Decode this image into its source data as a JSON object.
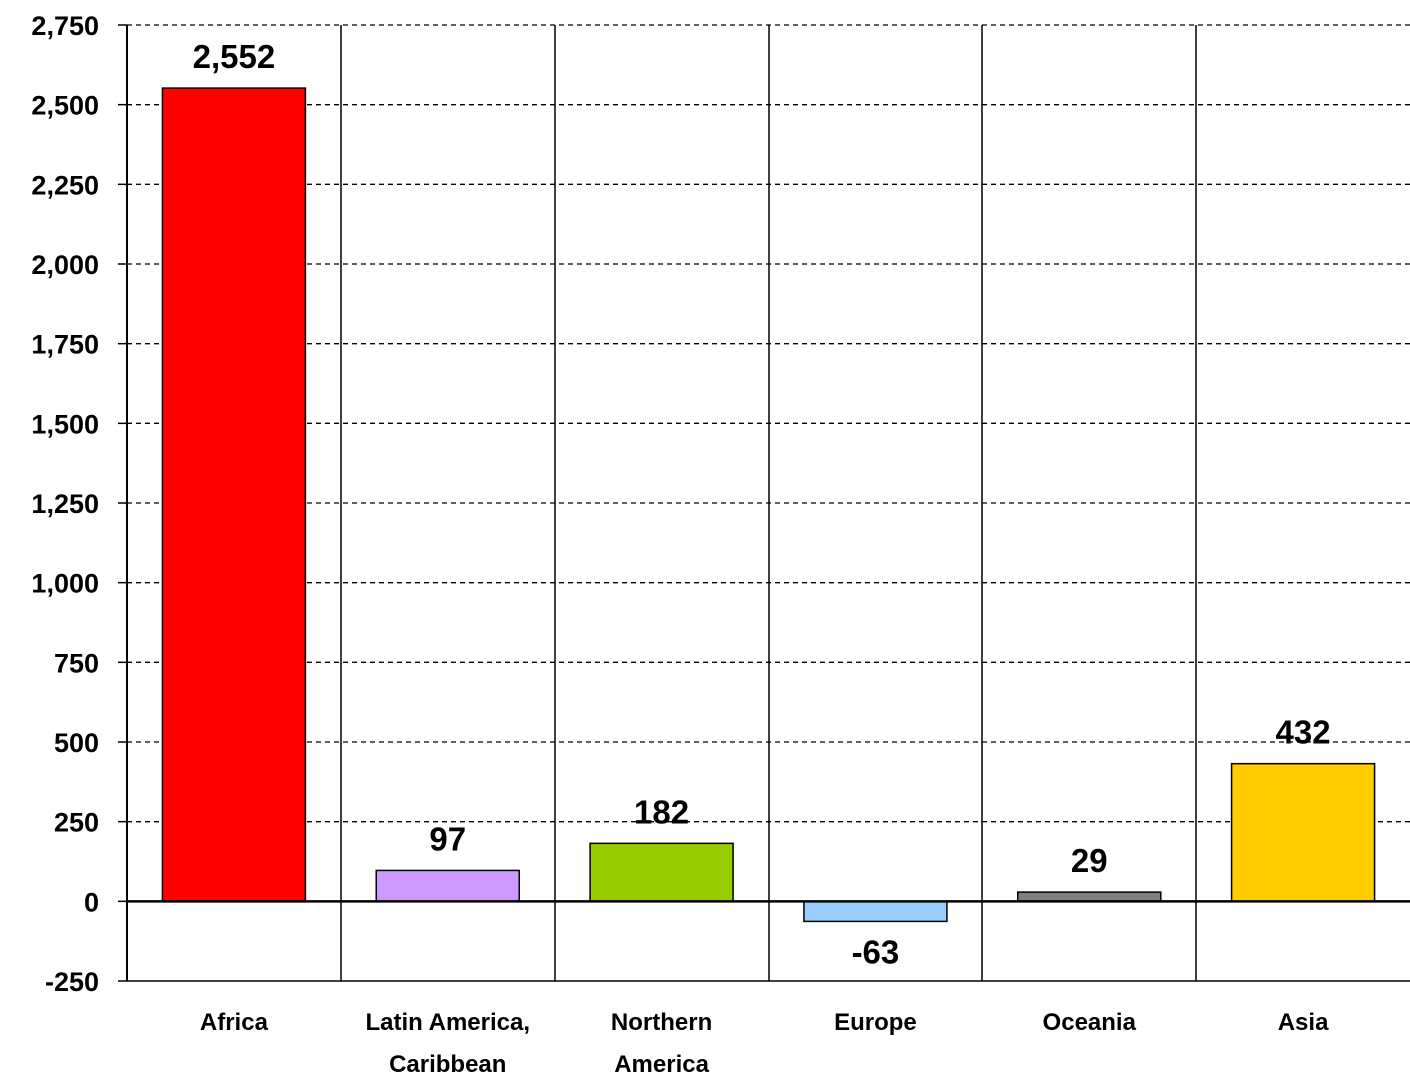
{
  "chart_data": {
    "type": "bar",
    "title": "",
    "xlabel": "",
    "ylabel": "",
    "categories": [
      [
        "Africa"
      ],
      [
        "Latin America,",
        "Caribbean"
      ],
      [
        "Northern",
        "America"
      ],
      [
        "Europe"
      ],
      [
        "Oceania"
      ],
      [
        "Asia"
      ]
    ],
    "values": [
      2552,
      97,
      182,
      -63,
      29,
      432
    ],
    "value_labels": [
      "2,552",
      "97",
      "182",
      "-63",
      "29",
      "432"
    ],
    "colors": [
      "#ff0000",
      "#cc99ff",
      "#99cc00",
      "#99ccff",
      "#808080",
      "#ffcc00"
    ],
    "ylim": [
      -250,
      2750
    ],
    "yticks": [
      -250,
      0,
      250,
      500,
      750,
      1000,
      1250,
      1500,
      1750,
      2000,
      2250,
      2500,
      2750
    ],
    "ytick_labels": [
      "-250",
      "0",
      "250",
      "500",
      "750",
      "1,000",
      "1,250",
      "1,500",
      "1,750",
      "2,000",
      "2,250",
      "2,500",
      "2,750"
    ],
    "grid": "horizontal-dashed",
    "legend": "none"
  }
}
